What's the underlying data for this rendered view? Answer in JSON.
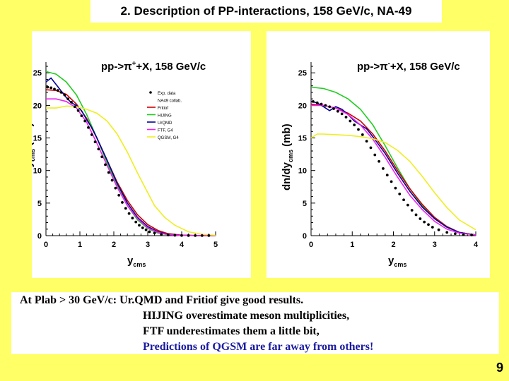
{
  "slide": {
    "title": "2. Description of PP-interactions, 158 GeV/c, NA-49",
    "page_number": "9"
  },
  "summary": {
    "lines": [
      "At Plab > 30 GeV/c: Ur.QMD and Fritiof give good results.",
      "HIJING overestimate meson multiplicities,",
      "FTF underestimates them a little bit,",
      "Predictions of QGSM are far away from others!"
    ],
    "colors": [
      "#000000",
      "#000000",
      "#000000",
      "#1a1aa0"
    ]
  },
  "chart_data": [
    {
      "type": "line",
      "title_prefix": "pp->π",
      "title_sup": "+",
      "title_suffix": "+X, 158 GeV/c",
      "ylabel_main": "dσ/dy",
      "ylabel_sub": "cms",
      "ylabel_unit": "(mb)",
      "xlabel_main": "y",
      "xlabel_sub": "cms",
      "xlim": [
        0,
        5
      ],
      "ylim": [
        0,
        26
      ],
      "xticks": [
        "0",
        "1",
        "2",
        "3",
        "4",
        "5"
      ],
      "yticks": [
        "0",
        "5",
        "10",
        "15",
        "20",
        "25"
      ],
      "legend_position": "top-right",
      "legend": [
        {
          "label": "Exp. data",
          "color": "#000000",
          "kind": "marker"
        },
        {
          "label": "NA49 collab.",
          "color": "#000000",
          "kind": "text"
        },
        {
          "label": "Fritiof",
          "color": "#cc0000",
          "kind": "line"
        },
        {
          "label": "HIJING",
          "color": "#22cc22",
          "kind": "line"
        },
        {
          "label": "UrQMD",
          "color": "#000099",
          "kind": "line"
        },
        {
          "label": "FTF, G4",
          "color": "#ee22ee",
          "kind": "line"
        },
        {
          "label": "QGSM, G4",
          "color": "#eeee22",
          "kind": "line"
        }
      ],
      "markers": {
        "color": "#000000",
        "x": [
          0.05,
          0.15,
          0.25,
          0.35,
          0.45,
          0.55,
          0.65,
          0.75,
          0.85,
          0.95,
          1.05,
          1.15,
          1.25,
          1.35,
          1.45,
          1.55,
          1.65,
          1.75,
          1.85,
          1.95,
          2.05,
          2.15,
          2.25,
          2.35,
          2.45,
          2.55,
          2.65,
          2.75,
          2.85,
          2.95,
          3.05,
          3.2,
          3.4,
          3.6,
          3.8,
          4.0,
          4.2,
          4.4,
          4.6,
          4.8
        ],
        "y": [
          22.8,
          22.7,
          22.5,
          22.3,
          22.0,
          21.6,
          21.0,
          20.5,
          19.8,
          19.2,
          18.4,
          17.6,
          16.6,
          15.5,
          14.4,
          13.3,
          12.1,
          10.9,
          9.7,
          8.5,
          7.3,
          6.2,
          5.1,
          4.2,
          3.4,
          2.7,
          2.1,
          1.6,
          1.2,
          0.9,
          0.6,
          0.4,
          0.2,
          0.1,
          0.05,
          0.03,
          0.02,
          0.01,
          0.01,
          0.01
        ]
      },
      "series": [
        {
          "color": "#22cc22",
          "x": [
            0,
            0.3,
            0.6,
            0.9,
            1.2,
            1.5,
            1.8,
            2.1,
            2.4,
            2.7,
            3.0,
            3.3,
            3.6,
            4.0,
            4.5,
            5.0
          ],
          "y": [
            25.2,
            24.8,
            23.6,
            21.6,
            18.6,
            15.0,
            11.2,
            7.6,
            4.6,
            2.4,
            1.1,
            0.4,
            0.15,
            0.05,
            0.01,
            0
          ]
        },
        {
          "color": "#cc0000",
          "x": [
            0,
            0.3,
            0.6,
            0.9,
            1.2,
            1.5,
            1.8,
            2.1,
            2.4,
            2.7,
            3.0,
            3.3,
            3.6,
            4.0,
            4.5,
            5.0
          ],
          "y": [
            22.4,
            22.3,
            21.7,
            20.2,
            18.0,
            15.0,
            11.6,
            8.2,
            5.4,
            3.2,
            1.7,
            0.8,
            0.3,
            0.08,
            0.02,
            0
          ]
        },
        {
          "color": "#000099",
          "x": [
            0,
            0.15,
            0.3,
            0.45,
            0.6,
            0.75,
            0.9,
            1.05,
            1.2,
            1.35,
            1.5,
            1.8,
            2.1,
            2.4,
            2.7,
            3.0,
            3.3,
            3.6,
            4.0,
            4.5,
            5.0
          ],
          "y": [
            23.6,
            24.2,
            23.2,
            22.2,
            21.2,
            20.4,
            20.0,
            19.2,
            17.8,
            16.6,
            15.0,
            11.6,
            8.0,
            5.0,
            2.8,
            1.4,
            0.6,
            0.2,
            0.05,
            0.01,
            0
          ]
        },
        {
          "color": "#ee22ee",
          "x": [
            0,
            0.3,
            0.6,
            0.9,
            1.2,
            1.5,
            1.8,
            2.1,
            2.4,
            2.7,
            3.0,
            3.3,
            3.6,
            4.0,
            4.5,
            5.0
          ],
          "y": [
            21.0,
            21.0,
            20.6,
            19.6,
            17.4,
            14.2,
            10.8,
            7.4,
            4.6,
            2.6,
            1.2,
            0.5,
            0.15,
            0.04,
            0.01,
            0
          ]
        },
        {
          "color": "#eeee22",
          "x": [
            0,
            0.3,
            0.6,
            0.9,
            1.2,
            1.5,
            1.8,
            2.1,
            2.4,
            2.7,
            3.0,
            3.2,
            3.5,
            3.8,
            4.2,
            4.6,
            5.0
          ],
          "y": [
            19.6,
            19.6,
            19.9,
            19.8,
            19.4,
            18.8,
            17.6,
            15.6,
            12.8,
            9.6,
            6.6,
            4.6,
            2.8,
            1.6,
            0.6,
            0.2,
            0.05
          ]
        }
      ]
    },
    {
      "type": "line",
      "title_prefix": "pp->π",
      "title_sup": "-",
      "title_suffix": "+X, 158 GeV/c",
      "ylabel_main": "dn/dy",
      "ylabel_sub": "cms",
      "ylabel_unit": "(mb)",
      "xlabel_main": "y",
      "xlabel_sub": "cms",
      "xlim": [
        0,
        4
      ],
      "ylim": [
        0,
        26
      ],
      "xticks": [
        "0",
        "1",
        "2",
        "3",
        "4"
      ],
      "yticks": [
        "0",
        "5",
        "10",
        "15",
        "20",
        "25"
      ],
      "markers": {
        "color": "#000000",
        "x": [
          0.05,
          0.15,
          0.25,
          0.35,
          0.45,
          0.55,
          0.65,
          0.75,
          0.85,
          0.95,
          1.05,
          1.15,
          1.25,
          1.35,
          1.45,
          1.55,
          1.65,
          1.75,
          1.85,
          1.95,
          2.05,
          2.15,
          2.25,
          2.35,
          2.45,
          2.55,
          2.65,
          2.75,
          2.85,
          2.95,
          3.1,
          3.3,
          3.5,
          3.7,
          3.9
        ],
        "y": [
          20.6,
          20.4,
          20.2,
          20.0,
          19.8,
          19.5,
          19.1,
          18.7,
          18.2,
          17.6,
          17.0,
          16.3,
          15.5,
          14.5,
          13.5,
          12.4,
          11.4,
          10.3,
          9.3,
          8.3,
          7.3,
          6.4,
          5.5,
          4.7,
          3.9,
          3.2,
          2.6,
          2.1,
          1.7,
          1.3,
          0.9,
          0.5,
          0.3,
          0.15,
          0.1
        ]
      },
      "series": [
        {
          "color": "#22cc22",
          "x": [
            0,
            0.3,
            0.6,
            0.9,
            1.2,
            1.5,
            1.8,
            2.1,
            2.4,
            2.7,
            3.0,
            3.3,
            3.6,
            4.0
          ],
          "y": [
            22.8,
            22.6,
            22.0,
            21.0,
            19.4,
            17.0,
            13.8,
            10.4,
            7.2,
            4.6,
            2.6,
            1.3,
            0.5,
            0.1
          ]
        },
        {
          "color": "#cc0000",
          "x": [
            0,
            0.3,
            0.6,
            0.9,
            1.2,
            1.5,
            1.8,
            2.1,
            2.4,
            2.7,
            3.0,
            3.3,
            3.6,
            4.0
          ],
          "y": [
            20.2,
            20.0,
            19.6,
            18.8,
            17.6,
            15.6,
            13.0,
            10.0,
            7.2,
            4.8,
            2.8,
            1.4,
            0.5,
            0.1
          ]
        },
        {
          "color": "#000099",
          "x": [
            0,
            0.15,
            0.3,
            0.45,
            0.6,
            0.75,
            0.9,
            1.05,
            1.2,
            1.35,
            1.5,
            1.8,
            2.1,
            2.4,
            2.7,
            3.0,
            3.3,
            3.6,
            4.0
          ],
          "y": [
            20.6,
            20.4,
            19.8,
            19.2,
            19.8,
            19.4,
            18.6,
            17.6,
            17.0,
            16.4,
            15.2,
            12.6,
            9.6,
            6.8,
            4.4,
            2.6,
            1.3,
            0.5,
            0.1
          ]
        },
        {
          "color": "#ee22ee",
          "x": [
            0,
            0.3,
            0.6,
            0.9,
            1.2,
            1.5,
            1.8,
            2.1,
            2.4,
            2.7,
            3.0,
            3.3,
            3.6,
            4.0
          ],
          "y": [
            20.0,
            20.0,
            19.6,
            18.6,
            17.0,
            14.8,
            12.0,
            9.0,
            6.2,
            4.0,
            2.2,
            1.0,
            0.4,
            0.1
          ]
        },
        {
          "color": "#eeee22",
          "x": [
            0,
            0.15,
            0.3,
            0.6,
            0.9,
            1.2,
            1.5,
            1.8,
            2.1,
            2.4,
            2.7,
            3.0,
            3.3,
            3.6,
            4.0
          ],
          "y": [
            15.0,
            15.6,
            15.6,
            15.5,
            15.4,
            15.2,
            14.9,
            14.3,
            13.1,
            11.4,
            9.1,
            6.6,
            4.3,
            2.4,
            0.9
          ]
        }
      ]
    }
  ]
}
